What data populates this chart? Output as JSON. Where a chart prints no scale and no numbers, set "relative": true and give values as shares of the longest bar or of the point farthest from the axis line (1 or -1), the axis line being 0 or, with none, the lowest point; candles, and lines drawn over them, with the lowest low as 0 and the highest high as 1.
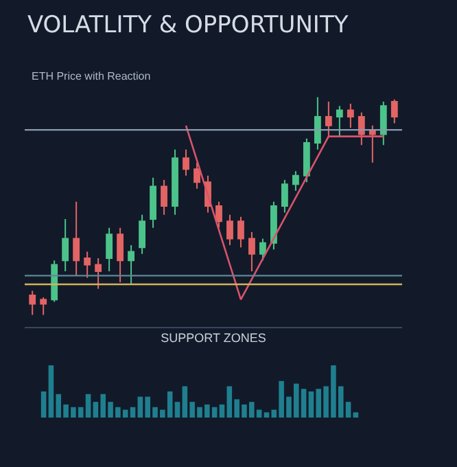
{
  "chart_data": [
    {
      "type": "candlestick",
      "title": "VOLATLITY & OPPORTUNITY",
      "subtitle": "ETH Price with Reaction",
      "xlabel": "SUPPORT ZONES",
      "relative": true,
      "categories": [
        null,
        null,
        null,
        null,
        null,
        null,
        null,
        null,
        null,
        null,
        null,
        null,
        null,
        null,
        null,
        null,
        null,
        null,
        null,
        null,
        null,
        null,
        null,
        null,
        null,
        null,
        null,
        null,
        null,
        null,
        null,
        null,
        null,
        null
      ],
      "ohlc": [
        [
          0.09,
          0.11,
          0,
          0.05
        ],
        [
          0.07,
          0.08,
          0,
          0.05
        ],
        [
          0.07,
          0.25,
          0.06,
          0.23
        ],
        [
          0.25,
          0.44,
          0.2,
          0.35
        ],
        [
          0.35,
          0.52,
          0.18,
          0.25
        ],
        [
          0.26,
          0.29,
          0.17,
          0.23
        ],
        [
          0.23,
          0.26,
          0.12,
          0.2
        ],
        [
          0.26,
          0.4,
          0.2,
          0.37
        ],
        [
          0.37,
          0.4,
          0.15,
          0.25
        ],
        [
          0.25,
          0.32,
          0.14,
          0.29
        ],
        [
          0.31,
          0.46,
          0.28,
          0.43
        ],
        [
          0.44,
          0.63,
          0.4,
          0.59
        ],
        [
          0.59,
          0.62,
          0.46,
          0.5
        ],
        [
          0.5,
          0.76,
          0.46,
          0.72
        ],
        [
          0.72,
          0.76,
          0.64,
          0.67
        ],
        [
          0.67,
          0.7,
          0.58,
          0.61
        ],
        [
          0.61,
          0.64,
          0.47,
          0.5
        ],
        [
          0.5,
          0.52,
          0.4,
          0.43
        ],
        [
          0.43,
          0.46,
          0.32,
          0.35
        ],
        [
          0.43,
          0.45,
          0.31,
          0.35
        ],
        [
          0.35,
          0.38,
          0.2,
          0.28
        ],
        [
          0.28,
          0.35,
          0.25,
          0.33
        ],
        [
          0.33,
          0.52,
          0.3,
          0.5
        ],
        [
          0.5,
          0.62,
          0.47,
          0.6
        ],
        [
          0.6,
          0.66,
          0.57,
          0.64
        ],
        [
          0.64,
          0.81,
          0.61,
          0.79
        ],
        [
          0.79,
          1,
          0.76,
          0.91
        ],
        [
          0.91,
          0.98,
          0.82,
          0.87
        ],
        [
          0.91,
          0.96,
          0.82,
          0.94
        ],
        [
          0.94,
          0.97,
          0.86,
          0.91
        ],
        [
          0.91,
          0.93,
          0.78,
          0.83
        ],
        [
          0.85,
          0.87,
          0.7,
          0.83
        ],
        [
          0.83,
          0.98,
          0.78,
          0.96
        ],
        [
          0.98,
          0.99,
          0.88,
          0.91
        ]
      ],
      "series": [
        {
          "type": "line",
          "color": "#d9536b",
          "values": [
            null,
            null,
            null,
            null,
            null,
            null,
            null,
            null,
            null,
            null,
            null,
            null,
            null,
            null,
            0.87,
            null,
            null,
            null,
            null,
            0.07,
            null,
            null,
            null,
            null,
            null,
            null,
            null,
            0.82,
            null,
            null,
            null,
            null,
            0.82,
            null
          ]
        }
      ],
      "marker": "none",
      "ref_lines": [
        {
          "axis": "y",
          "value": 0.85,
          "color": "#8a9bb0"
        },
        {
          "axis": "y",
          "value": 0.18,
          "color": "#5f8797"
        },
        {
          "axis": "y",
          "value": 0.14,
          "color": "#d4b25a"
        }
      ]
    },
    {
      "type": "bar",
      "relative": true,
      "color": "#1f7f8f",
      "categories": [
        null,
        null,
        null,
        null,
        null,
        null,
        null,
        null,
        null,
        null,
        null,
        null,
        null,
        null,
        null,
        null,
        null,
        null,
        null,
        null,
        null,
        null,
        null,
        null,
        null,
        null,
        null,
        null,
        null,
        null,
        null,
        null,
        null,
        null,
        null,
        null,
        null,
        null,
        null,
        null,
        null,
        null,
        null
      ],
      "values": [
        0.5,
        1.0,
        0.45,
        0.25,
        0.2,
        0.2,
        0.45,
        0.3,
        0.45,
        0.3,
        0.2,
        0.15,
        0.2,
        0.4,
        0.4,
        0.2,
        0.15,
        0.5,
        0.3,
        0.6,
        0.3,
        0.2,
        0.25,
        0.2,
        0.25,
        0.6,
        0.35,
        0.25,
        0.3,
        0.15,
        0.1,
        0.15,
        0.7,
        0.4,
        0.65,
        0.55,
        0.5,
        0.55,
        0.6,
        1.0,
        0.6,
        0.3,
        0.1
      ]
    }
  ]
}
